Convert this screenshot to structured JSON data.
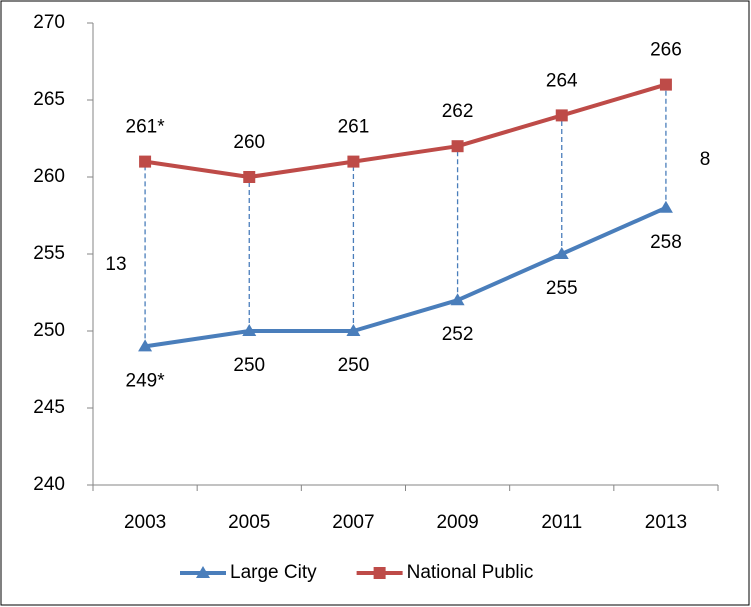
{
  "chart_data": {
    "type": "line",
    "categories": [
      "2003",
      "2005",
      "2007",
      "2009",
      "2011",
      "2013"
    ],
    "series": [
      {
        "name": "Large City",
        "color": "#4a7ebb",
        "marker": "triangle",
        "values": [
          249,
          250,
          250,
          252,
          255,
          258
        ],
        "value_labels": [
          "249*",
          "250",
          "250",
          "252",
          "255",
          "258"
        ]
      },
      {
        "name": "National Public",
        "color": "#be4b48",
        "marker": "square",
        "values": [
          261,
          260,
          261,
          262,
          264,
          266
        ],
        "value_labels": [
          "261*",
          "260",
          "261",
          "262",
          "264",
          "266"
        ]
      }
    ],
    "annotations": [
      {
        "text": "13"
      },
      {
        "text": "8"
      }
    ],
    "ylim": [
      240,
      270
    ],
    "yticks": [
      240,
      245,
      250,
      255,
      260,
      265,
      270
    ],
    "grid": false,
    "legend": "bottom"
  }
}
